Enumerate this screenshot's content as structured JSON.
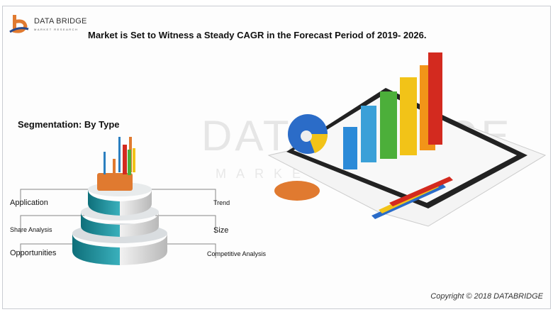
{
  "logo": {
    "name": "DATA BRIDGE",
    "tagline": "MARKET RESEARCH"
  },
  "title": "Market is Set to Witness a Steady CAGR in the Forecast Period of 2019- 2026.",
  "segmentation_heading": "Segmentation: By Type",
  "left_labels": [
    "Application",
    "Share Analysis",
    "Opportunities"
  ],
  "right_labels": [
    "Trend",
    "Size",
    "Competitive Analysis"
  ],
  "watermark": {
    "main": "DATA BRIDGE",
    "sub": "MARKET RESEARCH"
  },
  "copyright": "Copyright © 2018 DATABRIDGE",
  "colors": {
    "teal": "#1f8c98",
    "orange": "#e07a30",
    "red": "#d32a1f",
    "yellow": "#f2c318",
    "green": "#4caf3a",
    "blue": "#2b6cc8"
  }
}
